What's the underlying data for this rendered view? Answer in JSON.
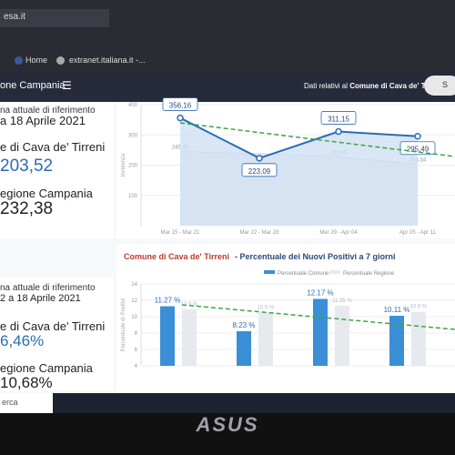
{
  "browser": {
    "tab": "esa.it",
    "bookmarks": [
      "Home",
      "extranet.italiana.it -..."
    ]
  },
  "header": {
    "title": "one Campania",
    "info_prefix": "Dati relativi al",
    "info_bold": "Comune di Cava de' Tirreni",
    "button": "S"
  },
  "panels": [
    {
      "period_label": "na attuale di riferimento",
      "period": "a 18 Aprile 2021",
      "comune_label": "e di Cava de' Tirreni",
      "comune_value": "203,52",
      "regione_label": "egione Campania",
      "regione_value": "232,38"
    },
    {
      "period_label": "na attuale di riferimento",
      "period": "2 a 18 Aprile 2021",
      "comune_label": "e di Cava de' Tirreni",
      "comune_value": "6,46%",
      "regione_label": "egione Campania",
      "regione_value": "10,68%"
    }
  ],
  "incidence_chart": {
    "type": "line",
    "y_label": "Incidenza",
    "categories": [
      "Mar 15 - Mar 21",
      "Mar 22 - Mar 28",
      "Mar 29 - Apr 04",
      "Apr 05 - Apr 11"
    ],
    "series": [
      {
        "color": "#2a6db5",
        "values": [
          356.16,
          223.09,
          311.15,
          295.49
        ],
        "value_labels": [
          "356,16",
          "223,09",
          "311,15",
          "295,49"
        ]
      },
      {
        "color": "#c9d3df",
        "values": [
          245.05,
          238,
          227.46,
          203.34
        ],
        "value_labels": [
          "245,05",
          null,
          "227,46",
          "203,34"
        ]
      }
    ],
    "ylim": [
      0,
      400
    ],
    "yticks": [
      100,
      200,
      300,
      400
    ],
    "grid": true
  },
  "positivity_chart": {
    "type": "bar",
    "title_red": "Comune di Cava de' Tirreni",
    "title_rest": " - Percentuale dei Nuovi Positivi a 7 giorni",
    "y_label": "Percentuale di Positivi",
    "categories": [
      null,
      null,
      null,
      null
    ],
    "series": [
      {
        "name": "Percentuale Comune",
        "color": "#3a8fd6",
        "values": [
          11.27,
          8.23,
          12.17,
          10.11
        ],
        "value_labels": [
          "11.27 %",
          "8.23 %",
          "12.17 %",
          "10.11 %"
        ]
      },
      {
        "name": "Percentuale Regione",
        "color": "#e6e9ee",
        "values": [
          10.9,
          10.5,
          11.35,
          10.6
        ],
        "value_labels": [
          "10.9 %",
          "10.5 %",
          "11.35 %",
          "10.6 %"
        ]
      }
    ],
    "ylim": [
      4,
      14
    ],
    "yticks": [
      4,
      6,
      8,
      10,
      12,
      14
    ],
    "grid": true
  },
  "taskbar": {
    "search": "erca"
  },
  "brand": "ASUS"
}
